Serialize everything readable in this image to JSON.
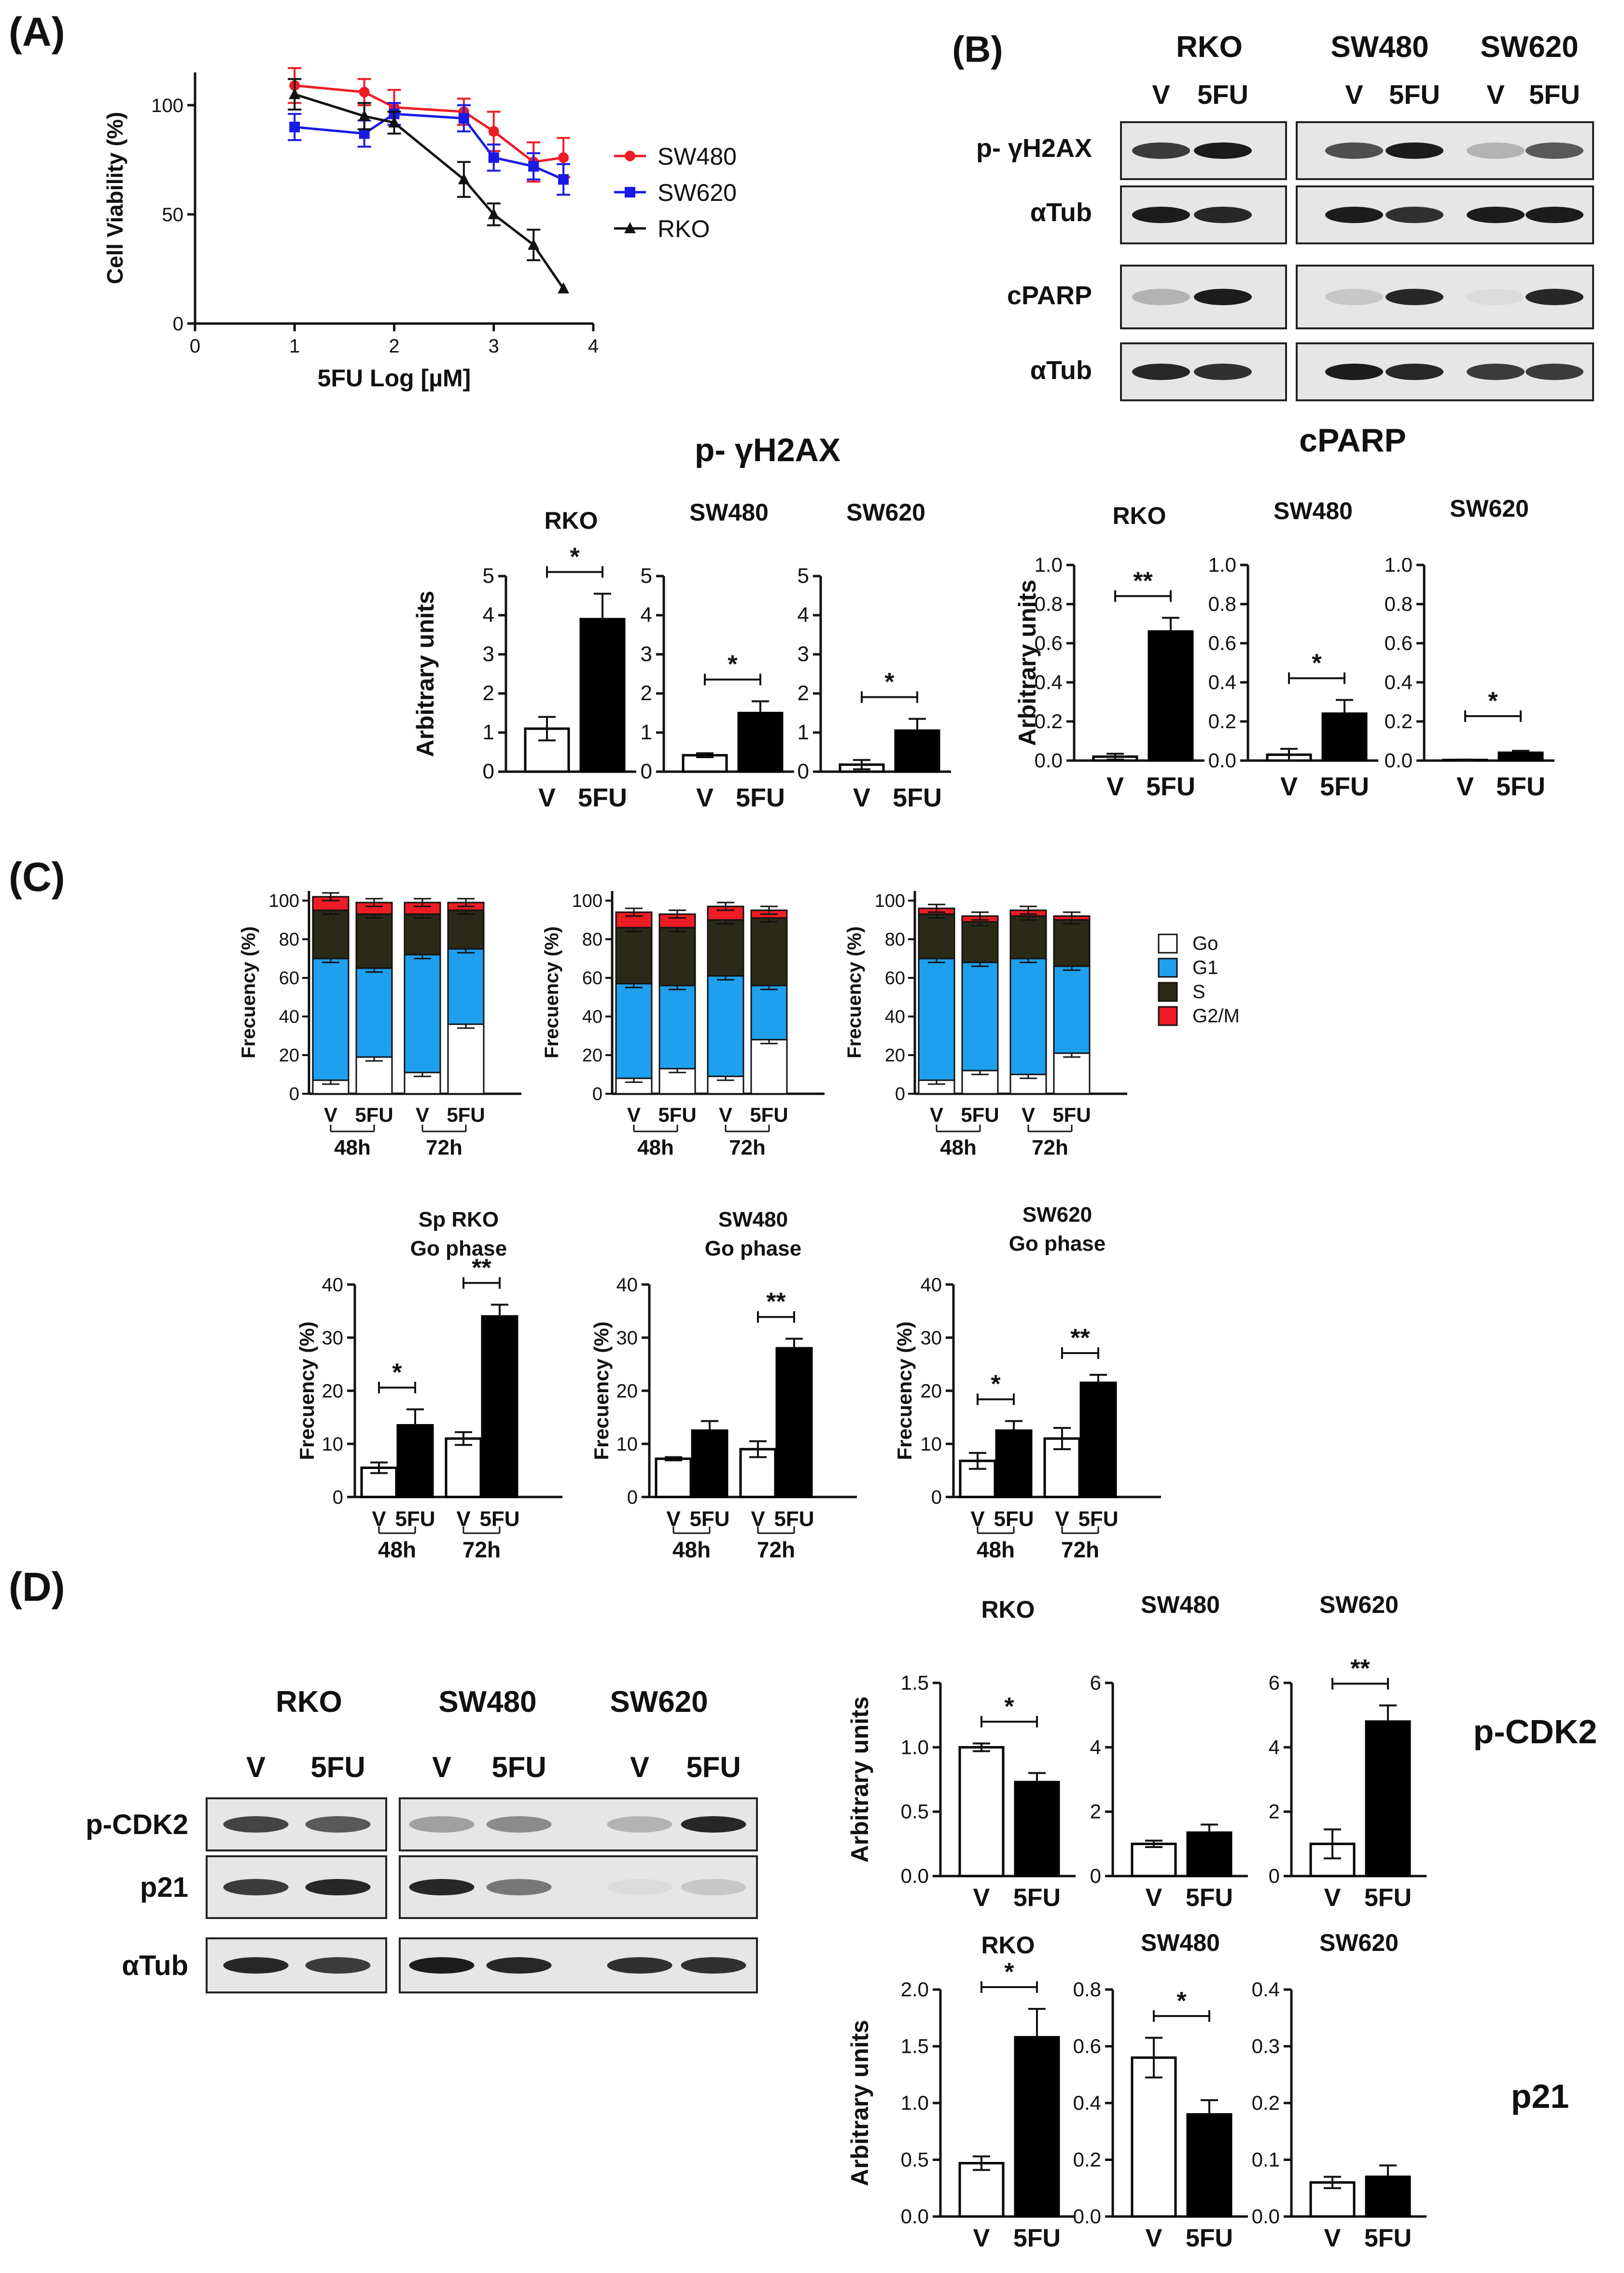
{
  "figure": {
    "panels": [
      "(A)",
      "(B)",
      "(C)",
      "(D)"
    ]
  },
  "colors": {
    "red": "#ee1c25",
    "blue": "#1a1ae6",
    "black": "#111111",
    "g1_blue": "#1fa0ee",
    "s_dark": "#2b2a18",
    "go_white": "#ffffff",
    "blot_bg": "#e6e6e6",
    "band": "#1c1c1c"
  },
  "blotB": {
    "panel": "(B)",
    "cells": [
      "RKO",
      "SW480",
      "SW620"
    ],
    "lanes": [
      "V",
      "5FU"
    ],
    "rows": [
      "p- γH2AX",
      "αTub",
      "cPARP",
      "αTub"
    ]
  },
  "blotD": {
    "panel": "(D)",
    "cells": [
      "RKO",
      "SW480",
      "SW620"
    ],
    "lanes": [
      "V",
      "5FU"
    ],
    "rows": [
      "p-CDK2",
      "p21",
      "αTub"
    ]
  },
  "labels": {
    "gh2ax_title": "p- γH2AX",
    "cparp_title": "cPARP",
    "pcdk2_side": "p-CDK2",
    "p21_side": "p21"
  },
  "chart_data": [
    {
      "id": "A",
      "type": "line",
      "xlabel": "5FU Log [µM]",
      "ylabel": "Cell Viability (%)",
      "xlim": [
        0,
        4
      ],
      "ylim": [
        0,
        115
      ],
      "xticks": [
        "0",
        "1",
        "2",
        "3",
        "4"
      ],
      "yticks": [
        "0",
        "50",
        "100"
      ],
      "legend_position": "right",
      "series": [
        {
          "name": "SW480",
          "color": "#ee1c25",
          "marker": "circle",
          "x": [
            1.0,
            1.7,
            2.0,
            2.7,
            3.0,
            3.4,
            3.7
          ],
          "y": [
            109,
            106,
            99,
            97,
            88,
            74,
            76
          ],
          "err": [
            8,
            6,
            8,
            6,
            9,
            9,
            9
          ]
        },
        {
          "name": "SW620",
          "color": "#1a1ae6",
          "marker": "square",
          "x": [
            1.0,
            1.7,
            2.0,
            2.7,
            3.0,
            3.4,
            3.7
          ],
          "y": [
            90,
            87,
            96,
            94,
            76,
            72,
            66
          ],
          "err": [
            6,
            6,
            5,
            6,
            6,
            6,
            7
          ]
        },
        {
          "name": "RKO",
          "color": "#111111",
          "marker": "triangle",
          "x": [
            1.0,
            1.7,
            2.0,
            2.7,
            3.0,
            3.4,
            3.7
          ],
          "y": [
            105,
            95,
            92,
            66,
            50,
            36,
            16
          ],
          "err": [
            7,
            6,
            5,
            8,
            5,
            7,
            0
          ]
        }
      ]
    },
    {
      "id": "B_gh2ax_RKO",
      "type": "bar",
      "title": "RKO",
      "ylabel": "Arbitrary units",
      "categories": [
        "V",
        "5FU"
      ],
      "values": [
        1.1,
        3.9
      ],
      "err": [
        0.3,
        0.65
      ],
      "ylim": [
        0,
        5
      ],
      "yticks": [
        "0",
        "1",
        "2",
        "3",
        "4",
        "5"
      ],
      "sig": "*"
    },
    {
      "id": "B_gh2ax_SW480",
      "type": "bar",
      "title": "SW480",
      "ylabel": "",
      "categories": [
        "V",
        "5FU"
      ],
      "values": [
        0.42,
        1.5
      ],
      "err": [
        0.05,
        0.3
      ],
      "ylim": [
        0,
        5
      ],
      "yticks": [
        "0",
        "1",
        "2",
        "3",
        "4",
        "5"
      ],
      "sig": "*"
    },
    {
      "id": "B_gh2ax_SW620",
      "type": "bar",
      "title": "SW620",
      "ylabel": "",
      "categories": [
        "V",
        "5FU"
      ],
      "values": [
        0.18,
        1.05
      ],
      "err": [
        0.12,
        0.3
      ],
      "ylim": [
        0,
        5
      ],
      "yticks": [
        "0",
        "1",
        "2",
        "3",
        "4",
        "5"
      ],
      "sig": "*"
    },
    {
      "id": "B_cparp_RKO",
      "type": "bar",
      "title": "RKO",
      "ylabel": "Arbitrary units",
      "categories": [
        "V",
        "5FU"
      ],
      "values": [
        0.02,
        0.66
      ],
      "err": [
        0.015,
        0.07
      ],
      "ylim": [
        0,
        1.0
      ],
      "yticks": [
        "0.0",
        "0.2",
        "0.4",
        "0.6",
        "0.8",
        "1.0"
      ],
      "sig": "**"
    },
    {
      "id": "B_cparp_SW480",
      "type": "bar",
      "title": "SW480",
      "ylabel": "",
      "categories": [
        "V",
        "5FU"
      ],
      "values": [
        0.03,
        0.24
      ],
      "err": [
        0.03,
        0.07
      ],
      "ylim": [
        0,
        1.0
      ],
      "yticks": [
        "0.0",
        "0.2",
        "0.4",
        "0.6",
        "0.8",
        "1.0"
      ],
      "sig": "*"
    },
    {
      "id": "B_cparp_SW620",
      "type": "bar",
      "title": "SW620",
      "ylabel": "",
      "categories": [
        "V",
        "5FU"
      ],
      "values": [
        0.003,
        0.04
      ],
      "err": [
        0.002,
        0.01
      ],
      "ylim": [
        0,
        1.0
      ],
      "yticks": [
        "0.0",
        "0.2",
        "0.4",
        "0.6",
        "0.8",
        "1.0"
      ],
      "sig": "*"
    },
    {
      "id": "C_stack_1",
      "type": "bar",
      "stacked": true,
      "ylabel": "Frecuency (%)",
      "categories": [
        "V",
        "5FU",
        "V",
        "5FU"
      ],
      "groups": [
        "48h",
        "72h"
      ],
      "ylim": [
        0,
        105
      ],
      "yticks": [
        "0",
        "20",
        "40",
        "60",
        "80",
        "100"
      ],
      "legend": [
        "Go",
        "G1",
        "S",
        "G2/M"
      ],
      "series": [
        {
          "name": "Go",
          "values": [
            7,
            19,
            11,
            36
          ]
        },
        {
          "name": "G1",
          "values": [
            63,
            46,
            61,
            39
          ]
        },
        {
          "name": "S",
          "values": [
            25,
            28,
            21,
            20
          ]
        },
        {
          "name": "G2/M",
          "values": [
            7,
            6,
            6,
            4
          ]
        }
      ]
    },
    {
      "id": "C_stack_2",
      "type": "bar",
      "stacked": true,
      "ylabel": "Frecuency (%)",
      "categories": [
        "V",
        "5FU",
        "V",
        "5FU"
      ],
      "groups": [
        "48h",
        "72h"
      ],
      "ylim": [
        0,
        105
      ],
      "yticks": [
        "0",
        "20",
        "40",
        "60",
        "80",
        "100"
      ],
      "series": [
        {
          "name": "Go",
          "values": [
            8,
            13,
            9,
            28
          ]
        },
        {
          "name": "G1",
          "values": [
            49,
            43,
            52,
            28
          ]
        },
        {
          "name": "S",
          "values": [
            29,
            30,
            29,
            35
          ]
        },
        {
          "name": "G2/M",
          "values": [
            8,
            7,
            7,
            4
          ]
        }
      ]
    },
    {
      "id": "C_stack_3",
      "type": "bar",
      "stacked": true,
      "ylabel": "Frecuency (%)",
      "categories": [
        "V",
        "5FU",
        "V",
        "5FU"
      ],
      "groups": [
        "48h",
        "72h"
      ],
      "ylim": [
        0,
        105
      ],
      "yticks": [
        "0",
        "20",
        "40",
        "60",
        "80",
        "100"
      ],
      "series": [
        {
          "name": "Go",
          "values": [
            7,
            12,
            10,
            21
          ]
        },
        {
          "name": "G1",
          "values": [
            63,
            56,
            60,
            45
          ]
        },
        {
          "name": "S",
          "values": [
            23,
            21,
            22,
            24
          ]
        },
        {
          "name": "G2/M",
          "values": [
            3,
            3,
            3,
            2
          ]
        }
      ]
    },
    {
      "id": "C_go_RKO",
      "type": "bar",
      "title": "Sp RKO Go phase",
      "ylabel": "Frecuency (%)",
      "categories": [
        "V",
        "5FU",
        "V",
        "5FU"
      ],
      "groups": [
        "48h",
        "72h"
      ],
      "values": [
        5.5,
        13.5,
        11,
        34
      ],
      "err": [
        1.0,
        3.0,
        1.2,
        2.2
      ],
      "ylim": [
        0,
        40
      ],
      "yticks": [
        "0",
        "10",
        "20",
        "30",
        "40"
      ],
      "sig": [
        [
          "*",
          0,
          1
        ],
        [
          "**",
          2,
          3
        ]
      ]
    },
    {
      "id": "C_go_SW480",
      "type": "bar",
      "title": "SW480 Go phase",
      "ylabel": "Frecuency (%)",
      "categories": [
        "V",
        "5FU",
        "V",
        "5FU"
      ],
      "groups": [
        "48h",
        "72h"
      ],
      "values": [
        7.2,
        12.5,
        9,
        28
      ],
      "err": [
        0.3,
        1.8,
        1.5,
        1.8
      ],
      "ylim": [
        0,
        40
      ],
      "yticks": [
        "0",
        "10",
        "20",
        "30",
        "40"
      ],
      "sig": [
        [
          "**",
          2,
          3
        ]
      ]
    },
    {
      "id": "C_go_SW620",
      "type": "bar",
      "title": "SW620 Go phase",
      "ylabel": "Frecuency (%)",
      "categories": [
        "V",
        "5FU",
        "V",
        "5FU"
      ],
      "groups": [
        "48h",
        "72h"
      ],
      "values": [
        6.8,
        12.5,
        11,
        21.5
      ],
      "err": [
        1.5,
        1.8,
        2.0,
        1.5
      ],
      "ylim": [
        0,
        40
      ],
      "yticks": [
        "0",
        "10",
        "20",
        "30",
        "40"
      ],
      "sig": [
        [
          "*",
          0,
          1
        ],
        [
          "**",
          2,
          3
        ]
      ]
    },
    {
      "id": "D_cdk2_RKO",
      "type": "bar",
      "title": "RKO",
      "ylabel": "Arbitrary units",
      "categories": [
        "V",
        "5FU"
      ],
      "values": [
        1.0,
        0.73
      ],
      "err": [
        0.03,
        0.07
      ],
      "ylim": [
        0,
        1.5
      ],
      "yticks": [
        "0.0",
        "0.5",
        "1.0",
        "1.5"
      ],
      "sig": "*"
    },
    {
      "id": "D_cdk2_SW480",
      "type": "bar",
      "title": "SW480",
      "ylabel": "",
      "categories": [
        "V",
        "5FU"
      ],
      "values": [
        1.0,
        1.35
      ],
      "err": [
        0.1,
        0.25
      ],
      "ylim": [
        0,
        6
      ],
      "yticks": [
        "0",
        "2",
        "4",
        "6"
      ],
      "sig": ""
    },
    {
      "id": "D_cdk2_SW620",
      "type": "bar",
      "title": "SW620",
      "ylabel": "",
      "categories": [
        "V",
        "5FU"
      ],
      "values": [
        1.0,
        4.8
      ],
      "err": [
        0.45,
        0.5
      ],
      "ylim": [
        0,
        6
      ],
      "yticks": [
        "0",
        "2",
        "4",
        "6"
      ],
      "sig": "**"
    },
    {
      "id": "D_p21_RKO",
      "type": "bar",
      "title": "RKO",
      "ylabel": "Arbitrary units",
      "categories": [
        "V",
        "5FU"
      ],
      "values": [
        0.47,
        1.58
      ],
      "err": [
        0.06,
        0.25
      ],
      "ylim": [
        0,
        2.0
      ],
      "yticks": [
        "0.0",
        "0.5",
        "1.0",
        "1.5",
        "2.0"
      ],
      "sig": "*"
    },
    {
      "id": "D_p21_SW480",
      "type": "bar",
      "title": "SW480",
      "ylabel": "",
      "categories": [
        "V",
        "5FU"
      ],
      "values": [
        0.56,
        0.36
      ],
      "err": [
        0.07,
        0.05
      ],
      "ylim": [
        0,
        0.8
      ],
      "yticks": [
        "0.0",
        "0.2",
        "0.4",
        "0.6",
        "0.8"
      ],
      "sig": "*"
    },
    {
      "id": "D_p21_SW620",
      "type": "bar",
      "title": "SW620",
      "ylabel": "",
      "categories": [
        "V",
        "5FU"
      ],
      "values": [
        0.06,
        0.07
      ],
      "err": [
        0.01,
        0.02
      ],
      "ylim": [
        0,
        0.4
      ],
      "yticks": [
        "0.0",
        "0.1",
        "0.2",
        "0.3",
        "0.4"
      ],
      "sig": ""
    }
  ]
}
